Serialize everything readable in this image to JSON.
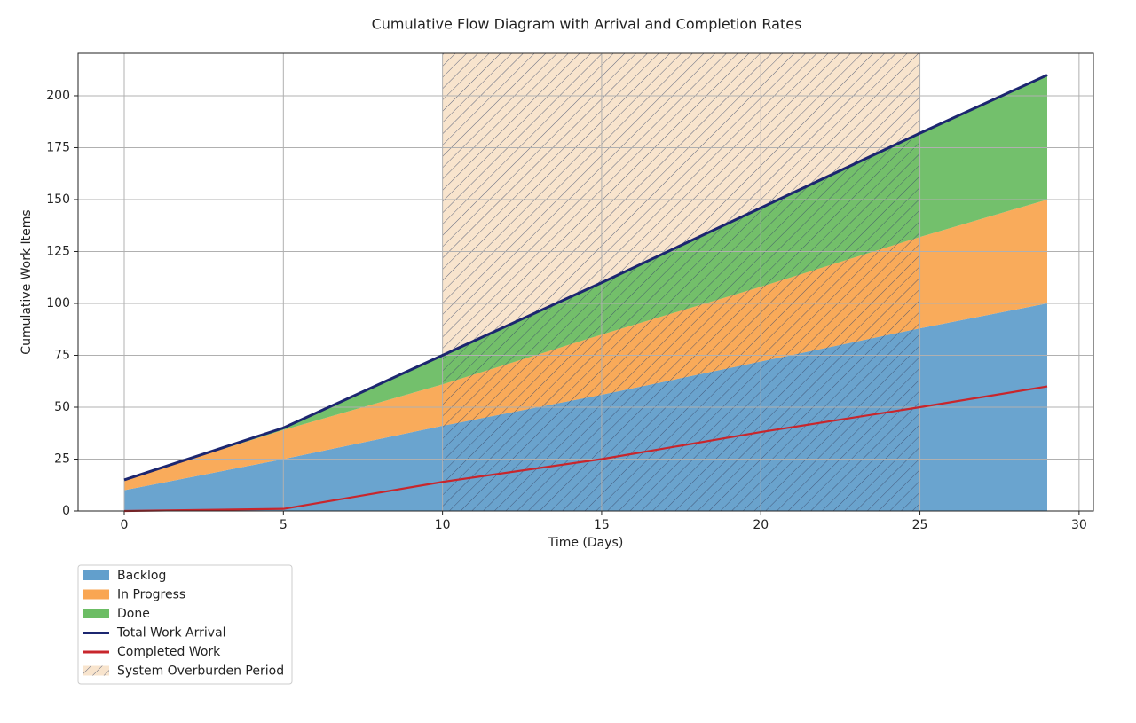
{
  "chart_data": {
    "type": "area",
    "title": "Cumulative Flow Diagram with Arrival and Completion Rates",
    "xlabel": "Time (Days)",
    "ylabel": "Cumulative Work Items",
    "x": [
      0,
      5,
      10,
      15,
      20,
      25,
      29
    ],
    "series": [
      {
        "name": "Backlog",
        "kind": "stacked-area",
        "color": "#629fcc",
        "values": [
          10,
          25,
          41,
          56,
          72,
          88,
          100
        ]
      },
      {
        "name": "In Progress",
        "kind": "stacked-area",
        "color": "#f9a652",
        "values": [
          5,
          14,
          20,
          29,
          36,
          44,
          50
        ]
      },
      {
        "name": "Done",
        "kind": "stacked-area",
        "color": "#6cbd64",
        "values": [
          0,
          1,
          14,
          25,
          38,
          50,
          60
        ]
      },
      {
        "name": "Total Work Arrival",
        "kind": "line",
        "color": "#1c2670",
        "values": [
          15,
          40,
          75,
          110,
          146,
          182,
          210
        ]
      },
      {
        "name": "Completed Work",
        "kind": "line",
        "color": "#c8262c",
        "values": [
          0,
          1,
          14,
          25,
          38,
          50,
          60
        ]
      }
    ],
    "spans": [
      {
        "name": "System Overburden Period",
        "start": 10,
        "end": 25,
        "color": "#f5d9b8"
      }
    ],
    "xlim": [
      -1.45,
      30.45
    ],
    "ylim": [
      0,
      220.5
    ],
    "xticks": [
      0,
      5,
      10,
      15,
      20,
      25,
      30
    ],
    "yticks": [
      0,
      25,
      50,
      75,
      100,
      125,
      150,
      175,
      200
    ],
    "grid": true,
    "legend": "below-left"
  }
}
